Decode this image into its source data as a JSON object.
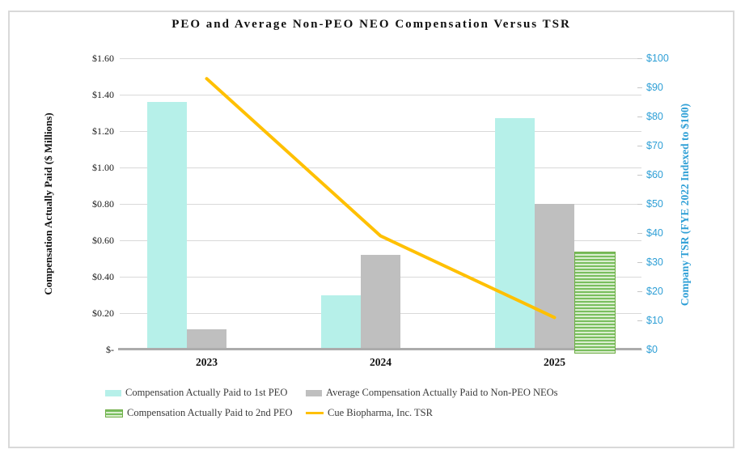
{
  "chart_data": {
    "type": "bar",
    "title": "PEO and Average Non-PEO NEO Compensation Versus TSR",
    "categories": [
      "2023",
      "2024",
      "2025"
    ],
    "series": [
      {
        "name": "Compensation Actually Paid to 1st PEO",
        "type": "bar",
        "axis": "left",
        "color": "#B6F0E9",
        "values": [
          1.36,
          0.3,
          1.27
        ]
      },
      {
        "name": "Average Compensation Actually Paid to Non-PEO NEOs",
        "type": "bar",
        "axis": "left",
        "color": "#BFBFBF",
        "values": [
          0.11,
          0.52,
          0.8
        ]
      },
      {
        "name": "Compensation Actually Paid to 2nd PEO",
        "type": "bar",
        "axis": "left",
        "color": "#79BE5E",
        "pattern": "horizontal-stripes",
        "pattern_light": "#DAEECF",
        "border_color": "#70AD47",
        "values": [
          null,
          null,
          0.54
        ]
      },
      {
        "name": "Cue Biopharma, Inc. TSR",
        "type": "line",
        "axis": "right",
        "color": "#FFC000",
        "values": [
          93,
          39,
          11
        ]
      }
    ],
    "left_axis": {
      "label": "Compensation Actually Paid ($ Millions)",
      "min": 0,
      "max": 1.6,
      "ticks": [
        "$1.60",
        "$1.40",
        "$1.20",
        "$1.00",
        "$0.80",
        "$0.60",
        "$0.40",
        "$0.20",
        "$-"
      ]
    },
    "right_axis": {
      "label": "Company TSR (FYE 2022 Indexed to $100)",
      "min": 0,
      "max": 100,
      "color": "#2E9FD6",
      "ticks": [
        "$100",
        "$90",
        "$80",
        "$70",
        "$60",
        "$50",
        "$40",
        "$30",
        "$20",
        "$10",
        "$0"
      ]
    },
    "grid": true,
    "legend_position": "bottom"
  },
  "colors": {
    "grid": "#D9D9D9",
    "baseline": "#ACACAC",
    "frame_border": "#D9D9D9",
    "text": "#1A1A1A"
  }
}
